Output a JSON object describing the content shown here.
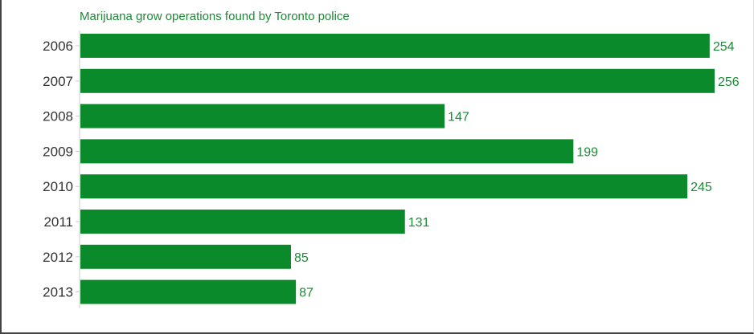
{
  "chart_data": {
    "type": "bar",
    "orientation": "horizontal",
    "title": "Marijuana grow operations found by Toronto police",
    "categories": [
      "2006",
      "2007",
      "2008",
      "2009",
      "2010",
      "2011",
      "2012",
      "2013"
    ],
    "values": [
      254,
      256,
      147,
      199,
      245,
      131,
      85,
      87
    ],
    "xlabel": "",
    "ylabel": "",
    "xlim": [
      0,
      256
    ],
    "grid": false,
    "legend": "none",
    "data_labels": true,
    "bar_color": "#0a8a2a",
    "label_color": "#1c8a36",
    "title_color": "#1c8a36"
  }
}
